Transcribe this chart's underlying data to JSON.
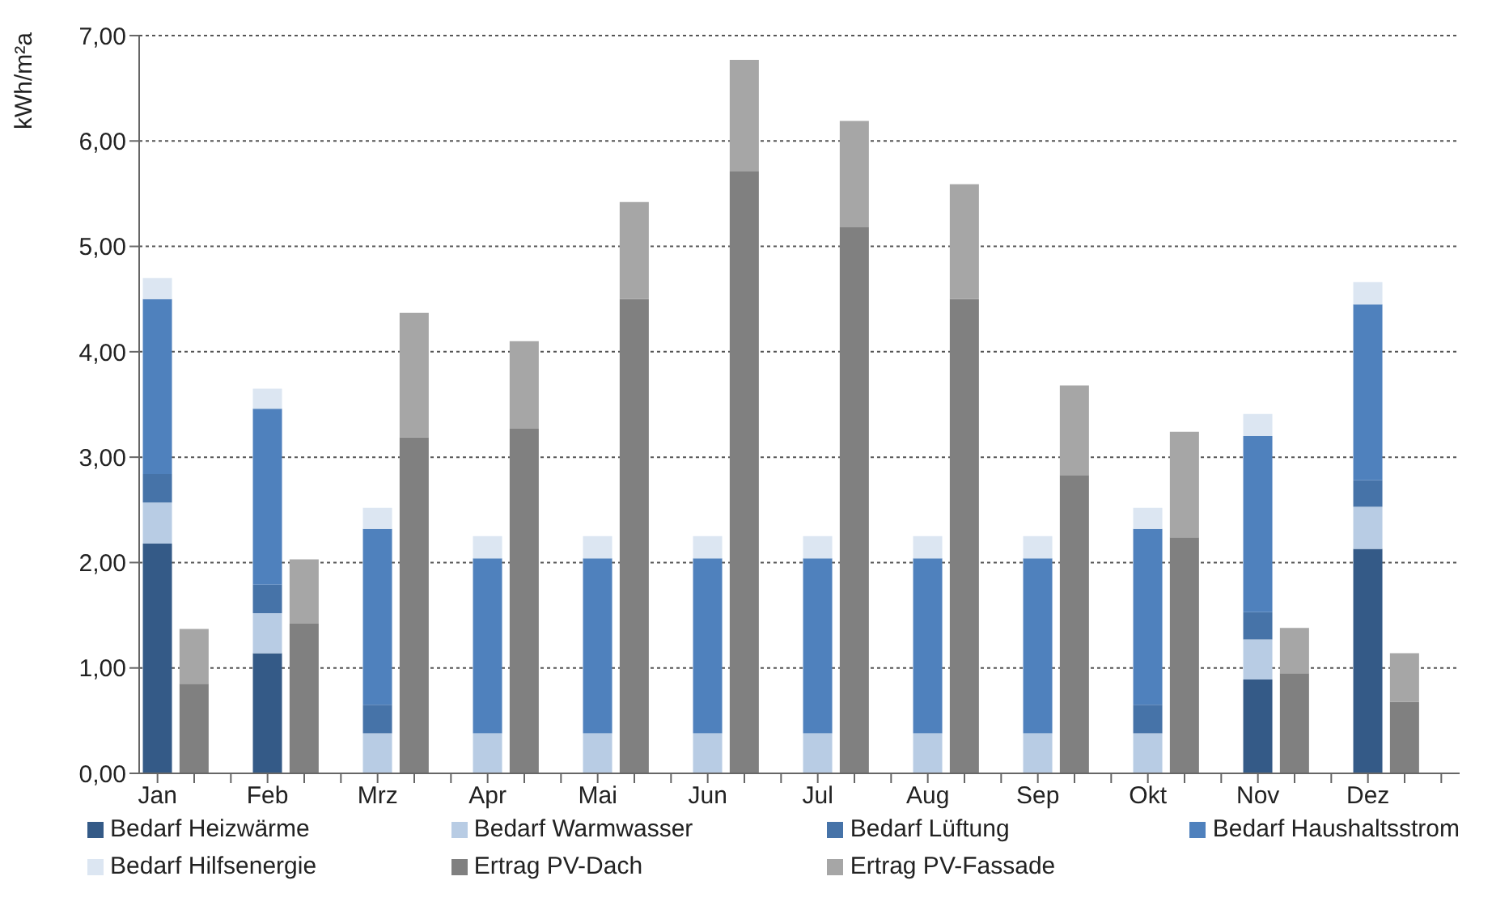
{
  "chart_data": {
    "type": "bar",
    "ylabel": "kWh/m²a",
    "categories": [
      "Jan",
      null,
      null,
      "Feb",
      null,
      null,
      "Mrz",
      null,
      null,
      "Apr",
      null,
      null,
      "Mai",
      null,
      null,
      "Jun",
      null,
      null,
      "Jul",
      null,
      null,
      "Aug",
      null,
      null,
      "Sep",
      null,
      null,
      "Okt",
      null,
      null,
      "Nov",
      null,
      null,
      "Dez",
      null,
      null
    ],
    "stacked": true,
    "series": [
      {
        "name": "Bedarf Heizwärme",
        "color": "#345a87",
        "values": [
          2.18,
          null,
          null,
          1.14,
          null,
          null,
          0,
          null,
          null,
          0,
          null,
          null,
          0,
          null,
          null,
          0,
          null,
          null,
          0,
          null,
          null,
          0,
          null,
          null,
          0,
          null,
          null,
          0,
          null,
          null,
          0.89,
          null,
          null,
          2.13,
          null,
          null
        ]
      },
      {
        "name": "Bedarf Warmwasser",
        "color": "#b8cce4",
        "values": [
          0.39,
          null,
          null,
          0.38,
          null,
          null,
          0.38,
          null,
          null,
          0.38,
          null,
          null,
          0.38,
          null,
          null,
          0.38,
          null,
          null,
          0.38,
          null,
          null,
          0.38,
          null,
          null,
          0.38,
          null,
          null,
          0.38,
          null,
          null,
          0.38,
          null,
          null,
          0.4,
          null,
          null
        ]
      },
      {
        "name": "Bedarf Lüftung",
        "color": "#4673a8",
        "values": [
          0.27,
          null,
          null,
          0.27,
          null,
          null,
          0.27,
          null,
          null,
          0,
          null,
          null,
          0,
          null,
          null,
          0,
          null,
          null,
          0,
          null,
          null,
          0,
          null,
          null,
          0,
          null,
          null,
          0.27,
          null,
          null,
          0.26,
          null,
          null,
          0.25,
          null,
          null
        ]
      },
      {
        "name": "Bedarf Haushaltsstrom",
        "color": "#4f81bd",
        "values": [
          1.66,
          null,
          null,
          1.67,
          null,
          null,
          1.67,
          null,
          null,
          1.66,
          null,
          null,
          1.66,
          null,
          null,
          1.66,
          null,
          null,
          1.66,
          null,
          null,
          1.66,
          null,
          null,
          1.66,
          null,
          null,
          1.67,
          null,
          null,
          1.67,
          null,
          null,
          1.67,
          null,
          null
        ]
      },
      {
        "name": "Bedarf Hilfsenergie",
        "color": "#dce6f2",
        "values": [
          0.2,
          null,
          null,
          0.19,
          null,
          null,
          0.2,
          null,
          null,
          0.21,
          null,
          null,
          0.21,
          null,
          null,
          0.21,
          null,
          null,
          0.21,
          null,
          null,
          0.21,
          null,
          null,
          0.21,
          null,
          null,
          0.2,
          null,
          null,
          0.21,
          null,
          null,
          0.21,
          null,
          null
        ]
      },
      {
        "name": "Ertrag PV-Dach",
        "color": "#808080",
        "values": [
          null,
          0.85,
          null,
          null,
          1.42,
          null,
          null,
          3.19,
          null,
          null,
          3.27,
          null,
          null,
          4.5,
          null,
          null,
          5.71,
          null,
          null,
          5.18,
          null,
          null,
          4.5,
          null,
          null,
          2.83,
          null,
          null,
          2.24,
          null,
          null,
          0.95,
          null,
          null,
          0.68,
          null
        ]
      },
      {
        "name": "Ertrag PV-Fassade",
        "color": "#a6a6a6",
        "values": [
          null,
          0.52,
          null,
          null,
          0.61,
          null,
          null,
          1.18,
          null,
          null,
          0.83,
          null,
          null,
          0.92,
          null,
          null,
          1.06,
          null,
          null,
          1.01,
          null,
          null,
          1.09,
          null,
          null,
          0.85,
          null,
          null,
          1.0,
          null,
          null,
          0.43,
          null,
          null,
          0.46,
          null
        ]
      }
    ],
    "ylim": [
      0,
      7
    ],
    "yticks": [
      {
        "value": 0,
        "label": "0,00"
      },
      {
        "value": 1,
        "label": "1,00"
      },
      {
        "value": 2,
        "label": "2,00"
      },
      {
        "value": 3,
        "label": "3,00"
      },
      {
        "value": 4,
        "label": "4,00"
      },
      {
        "value": 5,
        "label": "5,00"
      },
      {
        "value": 6,
        "label": "6,00"
      },
      {
        "value": 7,
        "label": "7,00"
      }
    ],
    "grid": "y",
    "legend": "bottom"
  }
}
